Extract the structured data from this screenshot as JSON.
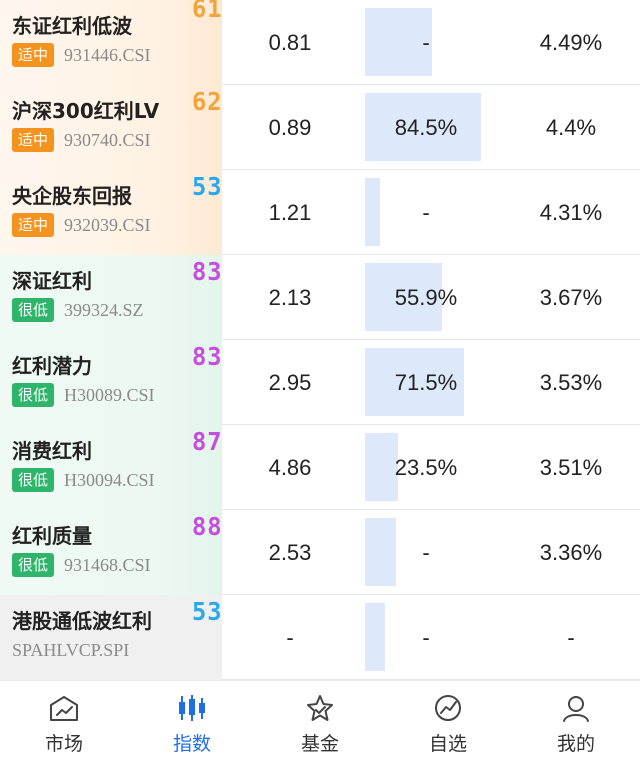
{
  "rows": [
    {
      "name": "东证红利低波",
      "badge": "适中",
      "code": "931446.CSI",
      "score": "61",
      "pe": "0.81",
      "percentile": "-",
      "percentile_fraction": 0.55,
      "yield": "4.49%"
    },
    {
      "name": "沪深300红利LV",
      "badge": "适中",
      "code": "930740.CSI",
      "score": "62",
      "pe": "0.89",
      "percentile": "84.5%",
      "percentile_fraction": 0.95,
      "yield": "4.4%"
    },
    {
      "name": "央企股东回报",
      "badge": "适中",
      "code": "932039.CSI",
      "score": "53",
      "pe": "1.21",
      "percentile": "-",
      "percentile_fraction": 0.12,
      "yield": "4.31%"
    },
    {
      "name": "深证红利",
      "badge": "很低",
      "code": "399324.SZ",
      "score": "83",
      "pe": "2.13",
      "percentile": "55.9%",
      "percentile_fraction": 0.63,
      "yield": "3.67%"
    },
    {
      "name": "红利潜力",
      "badge": "很低",
      "code": "H30089.CSI",
      "score": "83",
      "pe": "2.95",
      "percentile": "71.5%",
      "percentile_fraction": 0.81,
      "yield": "3.53%"
    },
    {
      "name": "消费红利",
      "badge": "很低",
      "code": "H30094.CSI",
      "score": "87",
      "pe": "4.86",
      "percentile": "23.5%",
      "percentile_fraction": 0.27,
      "yield": "3.51%"
    },
    {
      "name": "红利质量",
      "badge": "很低",
      "code": "931468.CSI",
      "score": "88",
      "pe": "2.53",
      "percentile": "-",
      "percentile_fraction": 0.25,
      "yield": "3.36%"
    },
    {
      "name": "港股通低波红利",
      "badge": "",
      "code": "SPAHLVCP.SPI",
      "score": "53",
      "pe": "-",
      "percentile": "-",
      "percentile_fraction": 0.16,
      "yield": "-"
    }
  ],
  "tabs": [
    {
      "label": "市场",
      "icon": "market-icon"
    },
    {
      "label": "指数",
      "icon": "index-candlestick-icon"
    },
    {
      "label": "基金",
      "icon": "fund-star-icon"
    },
    {
      "label": "自选",
      "icon": "watchlist-icon"
    },
    {
      "label": "我的",
      "icon": "profile-icon"
    }
  ],
  "active_tab": "指数",
  "colors": {
    "orange_badge": "#f5931f",
    "green_badge": "#2eb56b",
    "score_orange": "#f2a33a",
    "score_blue": "#2aa8ee",
    "score_purple": "#c54ee0",
    "bar": "#dde8fa",
    "active_tab": "#1e6fe6"
  }
}
